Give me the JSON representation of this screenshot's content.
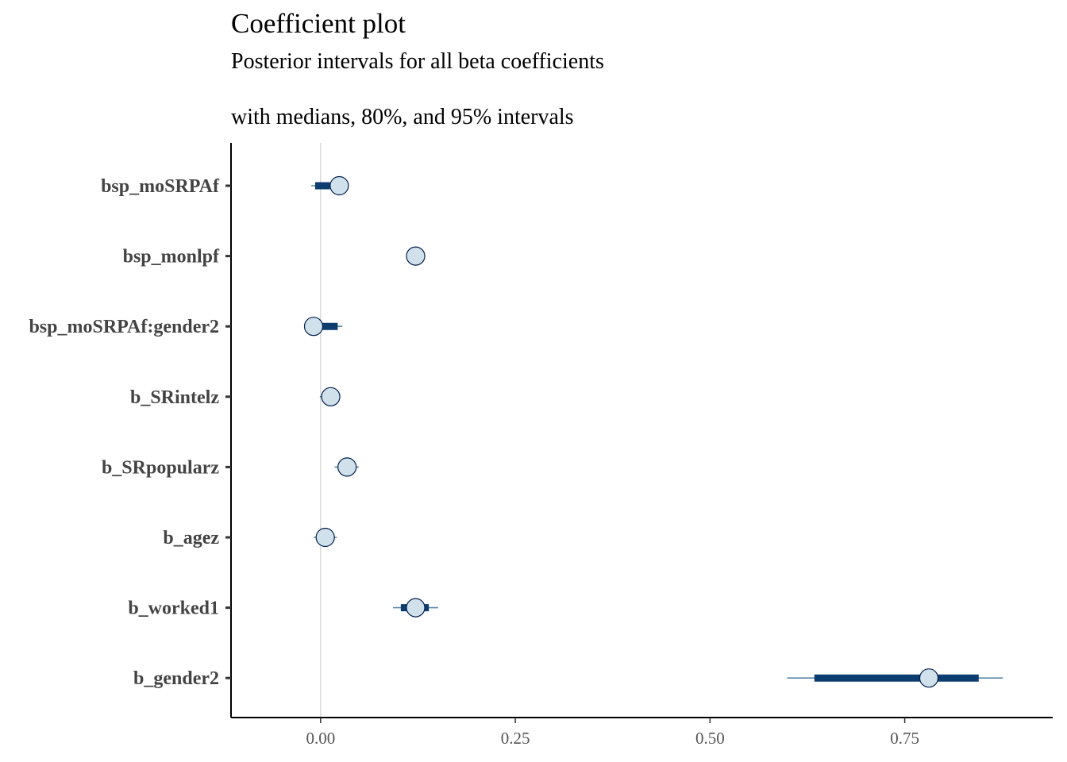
{
  "chart_data": {
    "type": "interval",
    "title": "Coefficient plot",
    "subtitle_line1": "Posterior intervals for all beta coefficients",
    "subtitle_line2": "with medians, 80%, and 95% intervals",
    "xlim": [
      -0.115,
      0.94
    ],
    "x_ticks": [
      0.0,
      0.25,
      0.5,
      0.75
    ],
    "x_tick_labels": [
      "0.00",
      "0.25",
      "0.50",
      "0.75"
    ],
    "reference_line_x": 0.0,
    "colors": {
      "inner": "#0b3d6e",
      "outer": "#5b86a6",
      "point_fill": "#d1e1ec",
      "point_stroke": "#011f4b",
      "axis": "#000000",
      "ref_line": "#d9d9d9"
    },
    "coefficients": [
      {
        "name": "bsp_moSRPAf",
        "median": 0.024,
        "inner": [
          -0.007,
          0.012
        ],
        "outer": [
          -0.012,
          0.03
        ]
      },
      {
        "name": "bsp_monlpf",
        "median": 0.122,
        "inner": [
          0.116,
          0.128
        ],
        "outer": [
          0.11,
          0.134
        ]
      },
      {
        "name": "bsp_moSRPAf:gender2",
        "median": -0.009,
        "inner": [
          0.002,
          0.022
        ],
        "outer": [
          -0.004,
          0.028
        ]
      },
      {
        "name": "b_SRintelz",
        "median": 0.013,
        "inner": [
          0.005,
          0.019
        ],
        "outer": [
          -0.001,
          0.025
        ]
      },
      {
        "name": "b_SRpopularz",
        "median": 0.034,
        "inner": [
          0.025,
          0.042
        ],
        "outer": [
          0.018,
          0.049
        ]
      },
      {
        "name": "b_agez",
        "median": 0.006,
        "inner": [
          0.0,
          0.013
        ],
        "outer": [
          -0.009,
          0.021
        ]
      },
      {
        "name": "b_worked1",
        "median": 0.122,
        "inner": [
          0.103,
          0.139
        ],
        "outer": [
          0.093,
          0.151
        ]
      },
      {
        "name": "b_gender2",
        "median": 0.781,
        "inner": [
          0.634,
          0.845
        ],
        "outer": [
          0.599,
          0.876
        ]
      }
    ]
  }
}
